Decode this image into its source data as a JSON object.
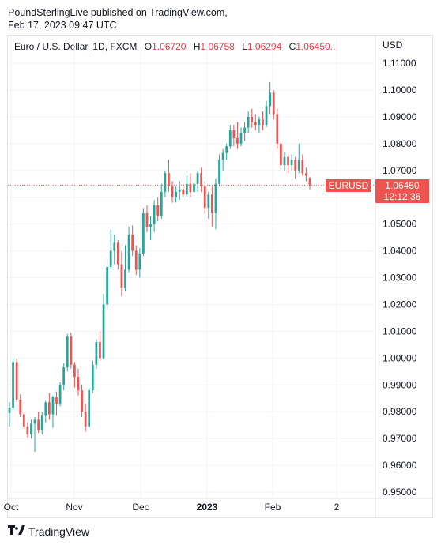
{
  "publish": {
    "line1": "PoundSterlingLive published on TradingView.com,",
    "line2": "Feb 17, 2023 09:47 UTC"
  },
  "legend": {
    "symbol": "Euro / U.S. Dollar, 1D, FXCM",
    "o_label": "O",
    "o_value": "1.06720",
    "h_label": "H",
    "h_value": "1.06758",
    "l_label": "L",
    "l_value": "1.06294",
    "c_label": "C",
    "c_value": "1.06450..."
  },
  "currency": "USD",
  "price_tag": {
    "symbol": "EURUSD",
    "price": "1.06450",
    "countdown": "12:12:36"
  },
  "footer": {
    "brand": "TradingView"
  },
  "colors": {
    "up": "#26a69a",
    "down": "#ef5350",
    "grid": "#f0f3fa",
    "last_line": "#ef5350"
  },
  "chart_data": {
    "type": "candlestick",
    "y_axis": {
      "ticks": [
        "1.11000",
        "1.10000",
        "1.09000",
        "1.08000",
        "1.07000",
        "1.06000",
        "1.05000",
        "1.04000",
        "1.03000",
        "1.02000",
        "1.01000",
        "1.00000",
        "0.99000",
        "0.98000",
        "0.97000",
        "0.96000",
        "0.95000"
      ],
      "range": [
        0.9475,
        1.1155
      ]
    },
    "x_axis": {
      "labels": [
        {
          "text": "Oct",
          "bold": false
        },
        {
          "text": "Nov",
          "bold": false
        },
        {
          "text": "Dec",
          "bold": false
        },
        {
          "text": "2023",
          "bold": true
        },
        {
          "text": "Feb",
          "bold": false
        },
        {
          "text": "2",
          "bold": false
        }
      ]
    },
    "last_price": 1.0645,
    "candles": [
      {
        "o": 0.9795,
        "h": 0.9835,
        "l": 0.9745,
        "c": 0.9815
      },
      {
        "o": 0.9815,
        "h": 0.9999,
        "l": 0.9805,
        "c": 0.9985
      },
      {
        "o": 0.9985,
        "h": 0.9999,
        "l": 0.9835,
        "c": 0.9845
      },
      {
        "o": 0.9845,
        "h": 0.9865,
        "l": 0.978,
        "c": 0.979
      },
      {
        "o": 0.979,
        "h": 0.98,
        "l": 0.9735,
        "c": 0.9745
      },
      {
        "o": 0.9745,
        "h": 0.976,
        "l": 0.9705,
        "c": 0.9715
      },
      {
        "o": 0.9715,
        "h": 0.977,
        "l": 0.97,
        "c": 0.9755
      },
      {
        "o": 0.9755,
        "h": 0.978,
        "l": 0.965,
        "c": 0.977
      },
      {
        "o": 0.977,
        "h": 0.98,
        "l": 0.972,
        "c": 0.973
      },
      {
        "o": 0.973,
        "h": 0.98,
        "l": 0.9715,
        "c": 0.9785
      },
      {
        "o": 0.9785,
        "h": 0.984,
        "l": 0.976,
        "c": 0.9835
      },
      {
        "o": 0.9835,
        "h": 0.987,
        "l": 0.977,
        "c": 0.979
      },
      {
        "o": 0.979,
        "h": 0.986,
        "l": 0.974,
        "c": 0.9855
      },
      {
        "o": 0.9855,
        "h": 0.9875,
        "l": 0.9785,
        "c": 0.983
      },
      {
        "o": 0.983,
        "h": 0.991,
        "l": 0.982,
        "c": 0.99
      },
      {
        "o": 0.99,
        "h": 0.998,
        "l": 0.988,
        "c": 0.9965
      },
      {
        "o": 0.9965,
        "h": 1.009,
        "l": 0.995,
        "c": 1.008
      },
      {
        "o": 1.008,
        "h": 1.0095,
        "l": 0.996,
        "c": 0.9975
      },
      {
        "o": 0.9975,
        "h": 0.9985,
        "l": 0.989,
        "c": 0.993
      },
      {
        "o": 0.993,
        "h": 0.996,
        "l": 0.986,
        "c": 0.988
      },
      {
        "o": 0.988,
        "h": 0.99,
        "l": 0.978,
        "c": 0.98
      },
      {
        "o": 0.98,
        "h": 0.983,
        "l": 0.9725,
        "c": 0.9745
      },
      {
        "o": 0.9745,
        "h": 0.989,
        "l": 0.974,
        "c": 0.988
      },
      {
        "o": 0.988,
        "h": 0.999,
        "l": 0.987,
        "c": 0.9975
      },
      {
        "o": 0.9975,
        "h": 1.007,
        "l": 0.996,
        "c": 1.006
      },
      {
        "o": 1.006,
        "h": 1.01,
        "l": 0.999,
        "c": 1.0
      },
      {
        "o": 1.0,
        "h": 1.024,
        "l": 0.9995,
        "c": 1.02
      },
      {
        "o": 1.02,
        "h": 1.037,
        "l": 1.018,
        "c": 1.034
      },
      {
        "o": 1.034,
        "h": 1.048,
        "l": 1.033,
        "c": 1.04
      },
      {
        "o": 1.04,
        "h": 1.046,
        "l": 1.035,
        "c": 1.043
      },
      {
        "o": 1.043,
        "h": 1.044,
        "l": 1.033,
        "c": 1.035
      },
      {
        "o": 1.035,
        "h": 1.04,
        "l": 1.023,
        "c": 1.026
      },
      {
        "o": 1.026,
        "h": 1.042,
        "l": 1.025,
        "c": 1.033
      },
      {
        "o": 1.033,
        "h": 1.049,
        "l": 1.032,
        "c": 1.046
      },
      {
        "o": 1.046,
        "h": 1.0495,
        "l": 1.038,
        "c": 1.04
      },
      {
        "o": 1.04,
        "h": 1.042,
        "l": 1.031,
        "c": 1.033
      },
      {
        "o": 1.033,
        "h": 1.041,
        "l": 1.03,
        "c": 1.039
      },
      {
        "o": 1.039,
        "h": 1.056,
        "l": 1.038,
        "c": 1.054
      },
      {
        "o": 1.054,
        "h": 1.057,
        "l": 1.047,
        "c": 1.049
      },
      {
        "o": 1.049,
        "h": 1.053,
        "l": 1.044,
        "c": 1.05
      },
      {
        "o": 1.05,
        "h": 1.059,
        "l": 1.047,
        "c": 1.057
      },
      {
        "o": 1.057,
        "h": 1.06,
        "l": 1.051,
        "c": 1.053
      },
      {
        "o": 1.053,
        "h": 1.065,
        "l": 1.052,
        "c": 1.062
      },
      {
        "o": 1.062,
        "h": 1.07,
        "l": 1.06,
        "c": 1.069
      },
      {
        "o": 1.069,
        "h": 1.074,
        "l": 1.062,
        "c": 1.064
      },
      {
        "o": 1.064,
        "h": 1.066,
        "l": 1.058,
        "c": 1.06
      },
      {
        "o": 1.06,
        "h": 1.064,
        "l": 1.058,
        "c": 1.062
      },
      {
        "o": 1.062,
        "h": 1.066,
        "l": 1.059,
        "c": 1.063
      },
      {
        "o": 1.063,
        "h": 1.065,
        "l": 1.06,
        "c": 1.061
      },
      {
        "o": 1.061,
        "h": 1.068,
        "l": 1.06,
        "c": 1.065
      },
      {
        "o": 1.065,
        "h": 1.069,
        "l": 1.06,
        "c": 1.062
      },
      {
        "o": 1.062,
        "h": 1.067,
        "l": 1.061,
        "c": 1.065
      },
      {
        "o": 1.065,
        "h": 1.07,
        "l": 1.062,
        "c": 1.069
      },
      {
        "o": 1.069,
        "h": 1.071,
        "l": 1.062,
        "c": 1.064
      },
      {
        "o": 1.064,
        "h": 1.066,
        "l": 1.054,
        "c": 1.056
      },
      {
        "o": 1.056,
        "h": 1.062,
        "l": 1.052,
        "c": 1.061
      },
      {
        "o": 1.061,
        "h": 1.064,
        "l": 1.049,
        "c": 1.054
      },
      {
        "o": 1.054,
        "h": 1.067,
        "l": 1.048,
        "c": 1.065
      },
      {
        "o": 1.065,
        "h": 1.076,
        "l": 1.064,
        "c": 1.074
      },
      {
        "o": 1.074,
        "h": 1.078,
        "l": 1.07,
        "c": 1.0765
      },
      {
        "o": 1.0765,
        "h": 1.08,
        "l": 1.074,
        "c": 1.079
      },
      {
        "o": 1.079,
        "h": 1.087,
        "l": 1.078,
        "c": 1.085
      },
      {
        "o": 1.085,
        "h": 1.087,
        "l": 1.079,
        "c": 1.082
      },
      {
        "o": 1.082,
        "h": 1.088,
        "l": 1.078,
        "c": 1.08
      },
      {
        "o": 1.08,
        "h": 1.086,
        "l": 1.079,
        "c": 1.084
      },
      {
        "o": 1.084,
        "h": 1.088,
        "l": 1.081,
        "c": 1.086
      },
      {
        "o": 1.086,
        "h": 1.092,
        "l": 1.084,
        "c": 1.09
      },
      {
        "o": 1.09,
        "h": 1.093,
        "l": 1.086,
        "c": 1.088
      },
      {
        "o": 1.088,
        "h": 1.091,
        "l": 1.085,
        "c": 1.087
      },
      {
        "o": 1.087,
        "h": 1.09,
        "l": 1.084,
        "c": 1.089
      },
      {
        "o": 1.089,
        "h": 1.092,
        "l": 1.085,
        "c": 1.087
      },
      {
        "o": 1.087,
        "h": 1.096,
        "l": 1.086,
        "c": 1.094
      },
      {
        "o": 1.094,
        "h": 1.103,
        "l": 1.091,
        "c": 1.099
      },
      {
        "o": 1.099,
        "h": 1.1,
        "l": 1.089,
        "c": 1.091
      },
      {
        "o": 1.091,
        "h": 1.093,
        "l": 1.078,
        "c": 1.08
      },
      {
        "o": 1.08,
        "h": 1.081,
        "l": 1.07,
        "c": 1.072
      },
      {
        "o": 1.072,
        "h": 1.077,
        "l": 1.07,
        "c": 1.075
      },
      {
        "o": 1.075,
        "h": 1.076,
        "l": 1.069,
        "c": 1.072
      },
      {
        "o": 1.072,
        "h": 1.076,
        "l": 1.07,
        "c": 1.074
      },
      {
        "o": 1.074,
        "h": 1.075,
        "l": 1.067,
        "c": 1.07
      },
      {
        "o": 1.07,
        "h": 1.08,
        "l": 1.069,
        "c": 1.074
      },
      {
        "o": 1.074,
        "h": 1.076,
        "l": 1.068,
        "c": 1.069
      },
      {
        "o": 1.069,
        "h": 1.071,
        "l": 1.066,
        "c": 1.068
      },
      {
        "o": 1.0672,
        "h": 1.06758,
        "l": 1.06294,
        "c": 1.0645
      }
    ]
  }
}
